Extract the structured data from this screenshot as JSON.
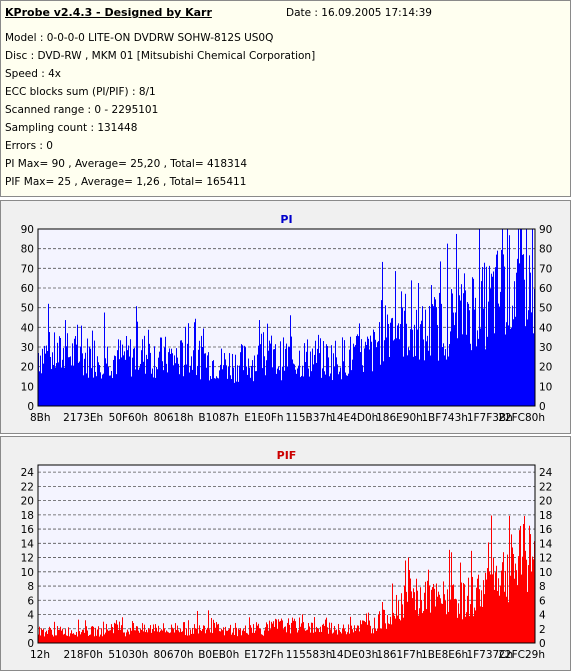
{
  "header": {
    "title": "KProbe v2.4.3 - Designed by Karr",
    "date": "Date : 16.09.2005 17:14:39"
  },
  "info_lines": [
    "Model : 0-0-0-0 LITE-ON DVDRW SOHW-812S  US0Q",
    "Disc : DVD-RW , MKM 01 [Mitsubishi Chemical Corporation]",
    "Speed : 4x",
    "ECC blocks sum (PI/PIF) : 8/1",
    "Scanned range : 0 - 2295101",
    "Sampling count : 131448",
    "Errors : 0",
    "PI Max= 90 , Average= 25,20 , Total= 418314",
    "PIF Max= 25 , Average= 1,26 , Total= 165411"
  ],
  "colors": {
    "pi": "#0000ff",
    "pif": "#ff0000",
    "pi_title": "#0000cc",
    "pif_title": "#cc0000",
    "plot_bg": "#f4f4ff",
    "panel_bg": "#f0f0f0",
    "info_bg": "#fffff0"
  },
  "chart_data": [
    {
      "type": "area",
      "title": "PI",
      "ylim": [
        0,
        90
      ],
      "yticks": [
        0,
        10,
        20,
        30,
        40,
        50,
        60,
        70,
        80,
        90
      ],
      "xlim": [
        0,
        2295101
      ],
      "xtick_labels": [
        "8Bh",
        "2173Eh",
        "50F60h",
        "80618h",
        "B1087h",
        "E1E0Fh",
        "115B37h",
        "14E4D0h",
        "186E90h",
        "1BF743h",
        "1F7F3Bh",
        "22FC80h"
      ],
      "grid": true,
      "series": [
        {
          "values": [
            [
              0,
              33
            ],
            [
              50000,
              32
            ],
            [
              100000,
              31
            ],
            [
              150000,
              32
            ],
            [
              200000,
              30
            ],
            [
              250000,
              31
            ],
            [
              300000,
              31
            ],
            [
              350000,
              30
            ],
            [
              400000,
              30
            ],
            [
              450000,
              31
            ],
            [
              500000,
              32
            ],
            [
              550000,
              30
            ],
            [
              600000,
              30
            ],
            [
              650000,
              29
            ],
            [
              700000,
              30
            ],
            [
              750000,
              30
            ],
            [
              800000,
              28
            ],
            [
              850000,
              26
            ],
            [
              900000,
              26
            ],
            [
              950000,
              27
            ],
            [
              1000000,
              28
            ],
            [
              1050000,
              29
            ],
            [
              1100000,
              28
            ],
            [
              1150000,
              30
            ],
            [
              1200000,
              29
            ],
            [
              1250000,
              30
            ],
            [
              1300000,
              29
            ],
            [
              1350000,
              29
            ],
            [
              1400000,
              30
            ],
            [
              1450000,
              31
            ],
            [
              1500000,
              31
            ],
            [
              1550000,
              34
            ],
            [
              1600000,
              50
            ],
            [
              1650000,
              53
            ],
            [
              1700000,
              50
            ],
            [
              1750000,
              42
            ],
            [
              1800000,
              45
            ],
            [
              1850000,
              50
            ],
            [
              1900000,
              52
            ],
            [
              1950000,
              55
            ],
            [
              2000000,
              62
            ],
            [
              2050000,
              60
            ],
            [
              2100000,
              66
            ],
            [
              2150000,
              72
            ],
            [
              2200000,
              75
            ],
            [
              2250000,
              80
            ],
            [
              2295101,
              82
            ]
          ]
        }
      ]
    },
    {
      "type": "area",
      "title": "PIF",
      "ylim": [
        0,
        25
      ],
      "yticks": [
        0,
        2,
        4,
        6,
        8,
        10,
        12,
        14,
        16,
        18,
        20,
        22,
        24
      ],
      "xlim": [
        0,
        2295101
      ],
      "xtick_labels": [
        "12h",
        "218F0h",
        "51030h",
        "80670h",
        "B0EB0h",
        "E172Fh",
        "115583h",
        "14DE03h",
        "1861F7h",
        "1BE8E6h",
        "1F737Ch",
        "22FC29h"
      ],
      "grid": true,
      "series": [
        {
          "values": [
            [
              0,
              2
            ],
            [
              50000,
              2
            ],
            [
              100000,
              2
            ],
            [
              150000,
              2
            ],
            [
              200000,
              2
            ],
            [
              250000,
              2
            ],
            [
              300000,
              2
            ],
            [
              350000,
              3
            ],
            [
              400000,
              2
            ],
            [
              450000,
              3
            ],
            [
              500000,
              2
            ],
            [
              550000,
              3
            ],
            [
              600000,
              2
            ],
            [
              650000,
              3
            ],
            [
              700000,
              2
            ],
            [
              750000,
              3
            ],
            [
              800000,
              3
            ],
            [
              850000,
              2
            ],
            [
              900000,
              2
            ],
            [
              950000,
              2
            ],
            [
              1000000,
              3
            ],
            [
              1050000,
              2
            ],
            [
              1100000,
              3
            ],
            [
              1150000,
              3
            ],
            [
              1200000,
              3
            ],
            [
              1250000,
              3
            ],
            [
              1300000,
              2
            ],
            [
              1350000,
              3
            ],
            [
              1400000,
              2
            ],
            [
              1450000,
              3
            ],
            [
              1500000,
              3
            ],
            [
              1550000,
              3
            ],
            [
              1600000,
              4
            ],
            [
              1650000,
              6
            ],
            [
              1700000,
              8
            ],
            [
              1750000,
              7
            ],
            [
              1800000,
              8
            ],
            [
              1850000,
              7
            ],
            [
              1900000,
              8
            ],
            [
              1950000,
              7
            ],
            [
              2000000,
              8
            ],
            [
              2050000,
              9
            ],
            [
              2100000,
              12
            ],
            [
              2150000,
              12
            ],
            [
              2200000,
              13
            ],
            [
              2250000,
              15
            ],
            [
              2295101,
              16
            ]
          ]
        }
      ]
    }
  ]
}
